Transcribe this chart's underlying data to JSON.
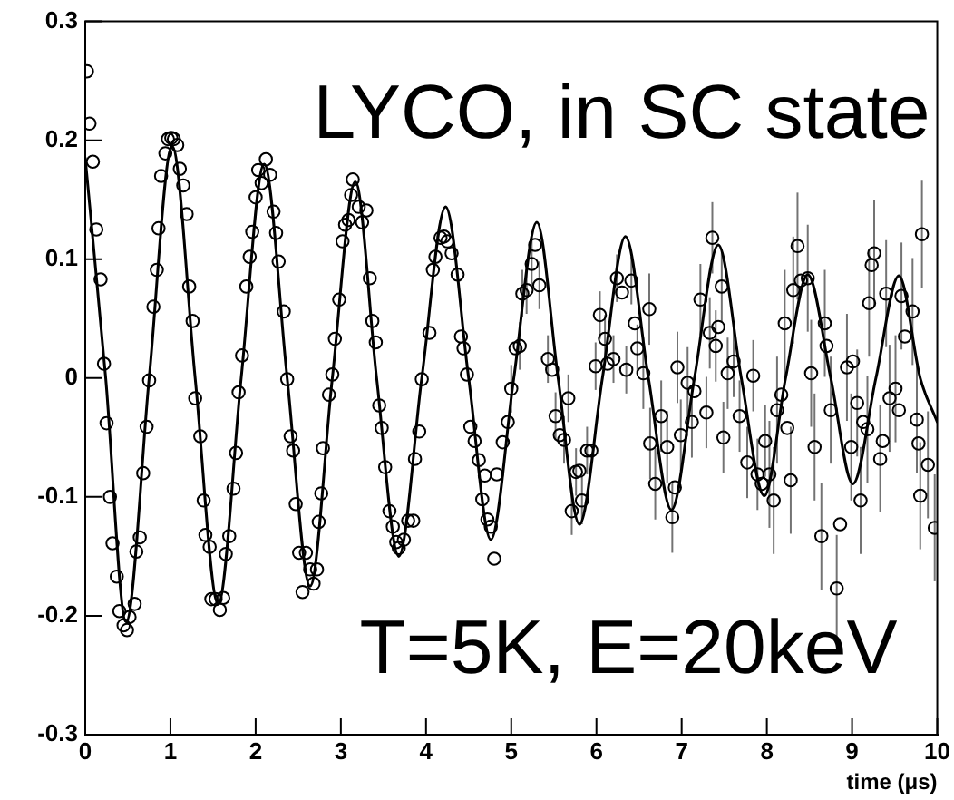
{
  "chart_data": {
    "type": "scatter",
    "xlabel": "time (μs)",
    "xlim": [
      0,
      10
    ],
    "xticks": [
      0,
      1,
      2,
      3,
      4,
      5,
      6,
      7,
      8,
      9,
      10
    ],
    "ylim": [
      -0.3,
      0.3
    ],
    "yticks": [
      -0.3,
      -0.2,
      -0.1,
      0,
      0.1,
      0.2,
      0.3
    ],
    "annotations": [
      "LYCO, in SC state",
      "T=5K, E=20keV"
    ],
    "series": [
      {
        "marker": "circle",
        "color": "#000000",
        "x": [
          0.02,
          0.05,
          0.09,
          0.13,
          0.18,
          0.22,
          0.25,
          0.29,
          0.32,
          0.37,
          0.4,
          0.45,
          0.49,
          0.52,
          0.58,
          0.6,
          0.64,
          0.68,
          0.72,
          0.75,
          0.8,
          0.84,
          0.86,
          0.89,
          0.94,
          0.97,
          1.01,
          1.04,
          1.08,
          1.11,
          1.15,
          1.19,
          1.22,
          1.26,
          1.29,
          1.35,
          1.39,
          1.41,
          1.46,
          1.48,
          1.53,
          1.58,
          1.62,
          1.65,
          1.69,
          1.74,
          1.77,
          1.8,
          1.84,
          1.89,
          1.93,
          1.96,
          2.0,
          2.03,
          2.07,
          2.12,
          2.17,
          2.21,
          2.24,
          2.27,
          2.33,
          2.37,
          2.41,
          2.44,
          2.47,
          2.51,
          2.55,
          2.59,
          2.64,
          2.68,
          2.72,
          2.74,
          2.77,
          2.79,
          2.86,
          2.9,
          2.93,
          2.98,
          3.02,
          3.05,
          3.09,
          3.12,
          3.14,
          3.21,
          3.25,
          3.3,
          3.34,
          3.37,
          3.41,
          3.45,
          3.48,
          3.52,
          3.57,
          3.61,
          3.65,
          3.68,
          3.74,
          3.79,
          3.85,
          3.87,
          3.92,
          3.95,
          4.04,
          4.08,
          4.11,
          4.17,
          4.21,
          4.25,
          4.3,
          4.37,
          4.41,
          4.44,
          4.48,
          4.52,
          4.57,
          4.62,
          4.66,
          4.69,
          4.72,
          4.76,
          4.8,
          4.83,
          4.9,
          4.96,
          5.0,
          5.05,
          5.1,
          5.13,
          5.18,
          5.24,
          5.28,
          5.33,
          5.43,
          5.48,
          5.52,
          5.57,
          5.62,
          5.67,
          5.71,
          5.76,
          5.8,
          5.83,
          5.89,
          5.94,
          5.99,
          6.04,
          6.1,
          6.13,
          6.2,
          6.24,
          6.3,
          6.35,
          6.41,
          6.45,
          6.48,
          6.55,
          6.62,
          6.63,
          6.69,
          6.76,
          6.83,
          6.89,
          6.92,
          6.95,
          6.99,
          7.07,
          7.12,
          7.15,
          7.22,
          7.29,
          7.33,
          7.36,
          7.4,
          7.43,
          7.47,
          7.49,
          7.54,
          7.61,
          7.68,
          7.77,
          7.84,
          7.89,
          7.94,
          7.98,
          8.03,
          8.08,
          8.12,
          8.17,
          8.21,
          8.24,
          8.28,
          8.31,
          8.36,
          8.4,
          8.48,
          8.52,
          8.56,
          8.64,
          8.68,
          8.7,
          8.75,
          8.82,
          8.86,
          8.94,
          8.99,
          9.01,
          9.06,
          9.1,
          9.13,
          9.18,
          9.2,
          9.23,
          9.26,
          9.33,
          9.36,
          9.4,
          9.44,
          9.51,
          9.55,
          9.58,
          9.62,
          9.71,
          9.76,
          9.78,
          9.8,
          9.82,
          9.89,
          9.97
        ],
        "values": [
          0.258,
          0.214,
          0.182,
          0.125,
          0.083,
          0.012,
          -0.038,
          -0.1,
          -0.139,
          -0.167,
          -0.196,
          -0.208,
          -0.212,
          -0.201,
          -0.19,
          -0.146,
          -0.134,
          -0.08,
          -0.041,
          -0.002,
          0.06,
          0.091,
          0.126,
          0.17,
          0.189,
          0.201,
          0.202,
          0.201,
          0.196,
          0.176,
          0.162,
          0.138,
          0.077,
          0.048,
          -0.017,
          -0.049,
          -0.103,
          -0.132,
          -0.142,
          -0.186,
          -0.186,
          -0.195,
          -0.185,
          -0.148,
          -0.133,
          -0.093,
          -0.063,
          -0.012,
          0.019,
          0.077,
          0.102,
          0.123,
          0.152,
          0.175,
          0.164,
          0.184,
          0.171,
          0.14,
          0.122,
          0.098,
          0.056,
          -0.001,
          -0.049,
          -0.061,
          -0.106,
          -0.147,
          -0.18,
          -0.147,
          -0.161,
          -0.173,
          -0.161,
          -0.121,
          -0.097,
          -0.059,
          -0.014,
          0.003,
          0.033,
          0.066,
          0.115,
          0.129,
          0.133,
          0.154,
          0.167,
          0.144,
          0.131,
          0.141,
          0.084,
          0.048,
          0.03,
          -0.023,
          -0.042,
          -0.075,
          -0.112,
          -0.125,
          -0.138,
          -0.143,
          -0.136,
          -0.12,
          -0.12,
          -0.068,
          -0.045,
          -0.001,
          0.038,
          0.091,
          0.102,
          0.118,
          0.119,
          0.115,
          0.105,
          0.087,
          0.035,
          0.025,
          0.003,
          -0.041,
          -0.053,
          -0.069,
          -0.102,
          -0.082,
          -0.119,
          -0.125,
          -0.152,
          -0.081,
          -0.054,
          -0.037,
          -0.009,
          0.025,
          0.027,
          0.071,
          0.074,
          0.096,
          0.112,
          0.078,
          0.016,
          0.007,
          -0.032,
          -0.048,
          -0.052,
          -0.017,
          -0.112,
          -0.079,
          -0.078,
          -0.103,
          -0.061,
          -0.061,
          0.01,
          0.053,
          0.033,
          0.012,
          0.016,
          0.084,
          0.072,
          0.007,
          0.082,
          0.046,
          0.025,
          0.004,
          0.058,
          -0.055,
          -0.089,
          -0.032,
          -0.058,
          -0.117,
          -0.092,
          0.009,
          -0.048,
          -0.004,
          -0.037,
          -0.011,
          0.066,
          -0.029,
          0.038,
          0.118,
          0.027,
          0.043,
          0.077,
          -0.05,
          0.004,
          0.014,
          -0.032,
          -0.071,
          0.002,
          -0.081,
          -0.089,
          -0.053,
          -0.081,
          -0.103,
          -0.027,
          -0.014,
          0.046,
          -0.042,
          -0.086,
          0.074,
          0.111,
          0.082,
          0.084,
          0.004,
          -0.058,
          -0.133,
          0.046,
          0.027,
          -0.027,
          -0.177,
          -0.123,
          0.009,
          -0.058,
          0.014,
          -0.021,
          -0.103,
          -0.037,
          -0.043,
          0.063,
          0.095,
          0.105,
          -0.068,
          -0.053,
          0.071,
          -0.017,
          -0.009,
          -0.027,
          0.069,
          0.035,
          0.056,
          -0.035,
          -0.055,
          -0.099,
          0.121,
          -0.073,
          -0.126
        ],
        "errors": [
          null,
          null,
          null,
          null,
          null,
          null,
          null,
          null,
          null,
          null,
          null,
          null,
          null,
          null,
          null,
          null,
          null,
          null,
          null,
          null,
          null,
          null,
          null,
          null,
          null,
          null,
          null,
          null,
          null,
          null,
          null,
          null,
          null,
          null,
          null,
          null,
          null,
          null,
          null,
          null,
          null,
          null,
          null,
          null,
          null,
          null,
          null,
          null,
          null,
          null,
          null,
          null,
          null,
          null,
          null,
          null,
          null,
          null,
          null,
          null,
          null,
          null,
          null,
          null,
          null,
          null,
          null,
          null,
          null,
          null,
          null,
          null,
          null,
          null,
          null,
          null,
          null,
          null,
          null,
          null,
          null,
          null,
          null,
          null,
          null,
          null,
          null,
          null,
          null,
          null,
          null,
          null,
          null,
          null,
          null,
          null,
          null,
          null,
          null,
          null,
          null,
          null,
          null,
          null,
          null,
          null,
          null,
          null,
          null,
          null,
          null,
          null,
          null,
          null,
          null,
          null,
          null,
          null,
          null,
          null,
          null,
          null,
          null,
          null,
          0.02,
          null,
          0.02,
          0.02,
          0.02,
          0.02,
          null,
          0.02,
          0.02,
          null,
          0.02,
          null,
          0.02,
          0.02,
          0.02,
          0.02,
          null,
          0.02,
          0.02,
          null,
          0.02,
          0.02,
          0.02,
          null,
          0.02,
          0.02,
          null,
          0.02,
          0.02,
          null,
          0.02,
          0.03,
          0.03,
          0.03,
          0.03,
          0.03,
          0.03,
          0.03,
          null,
          0.03,
          0.03,
          0.03,
          0.03,
          null,
          0.03,
          0.03,
          0.03,
          0.03,
          0.03,
          null,
          0.03,
          0.03,
          0.03,
          0.03,
          0.03,
          0.03,
          0.03,
          0.03,
          null,
          0.03,
          0.045,
          0.045,
          0.045,
          null,
          0.045,
          null,
          0.045,
          0.045,
          0.045,
          null,
          0.045,
          0.045,
          0.045,
          0.045,
          0.045,
          null,
          0.045,
          0.045,
          null,
          0.045,
          0.045,
          null,
          0.045,
          0.045,
          null,
          0.045,
          0.045,
          null,
          0.045,
          0.045,
          null,
          0.045,
          0.045,
          0.045,
          null,
          0.045,
          null,
          0.045,
          0.045,
          null,
          0.045,
          0.045,
          0.045,
          0.045
        ]
      },
      {
        "type": "line",
        "marker": "none",
        "line_style": "solid",
        "color": "#000000",
        "x": [
          0,
          0.24,
          0.48,
          0.75,
          1.02,
          1.29,
          1.56,
          1.83,
          2.1,
          2.37,
          2.64,
          2.9,
          3.17,
          3.42,
          3.68,
          3.95,
          4.23,
          4.5,
          4.76,
          5.03,
          5.3,
          5.55,
          5.8,
          6.07,
          6.34,
          6.61,
          6.88,
          7.15,
          7.43,
          7.7,
          7.97,
          8.22,
          8.48,
          8.75,
          9.01,
          9.28,
          9.55,
          9.8,
          10
        ],
        "values": [
          0.185,
          0,
          -0.205,
          0,
          0.195,
          0,
          -0.19,
          0,
          0.18,
          0,
          -0.175,
          0,
          0.165,
          0,
          -0.15,
          0,
          0.144,
          0,
          -0.136,
          0,
          0.131,
          0,
          -0.123,
          0,
          0.119,
          0,
          -0.111,
          0,
          0.112,
          0,
          -0.099,
          0,
          0.087,
          0,
          -0.089,
          0,
          0.086,
          0,
          -0.037
        ]
      }
    ]
  }
}
